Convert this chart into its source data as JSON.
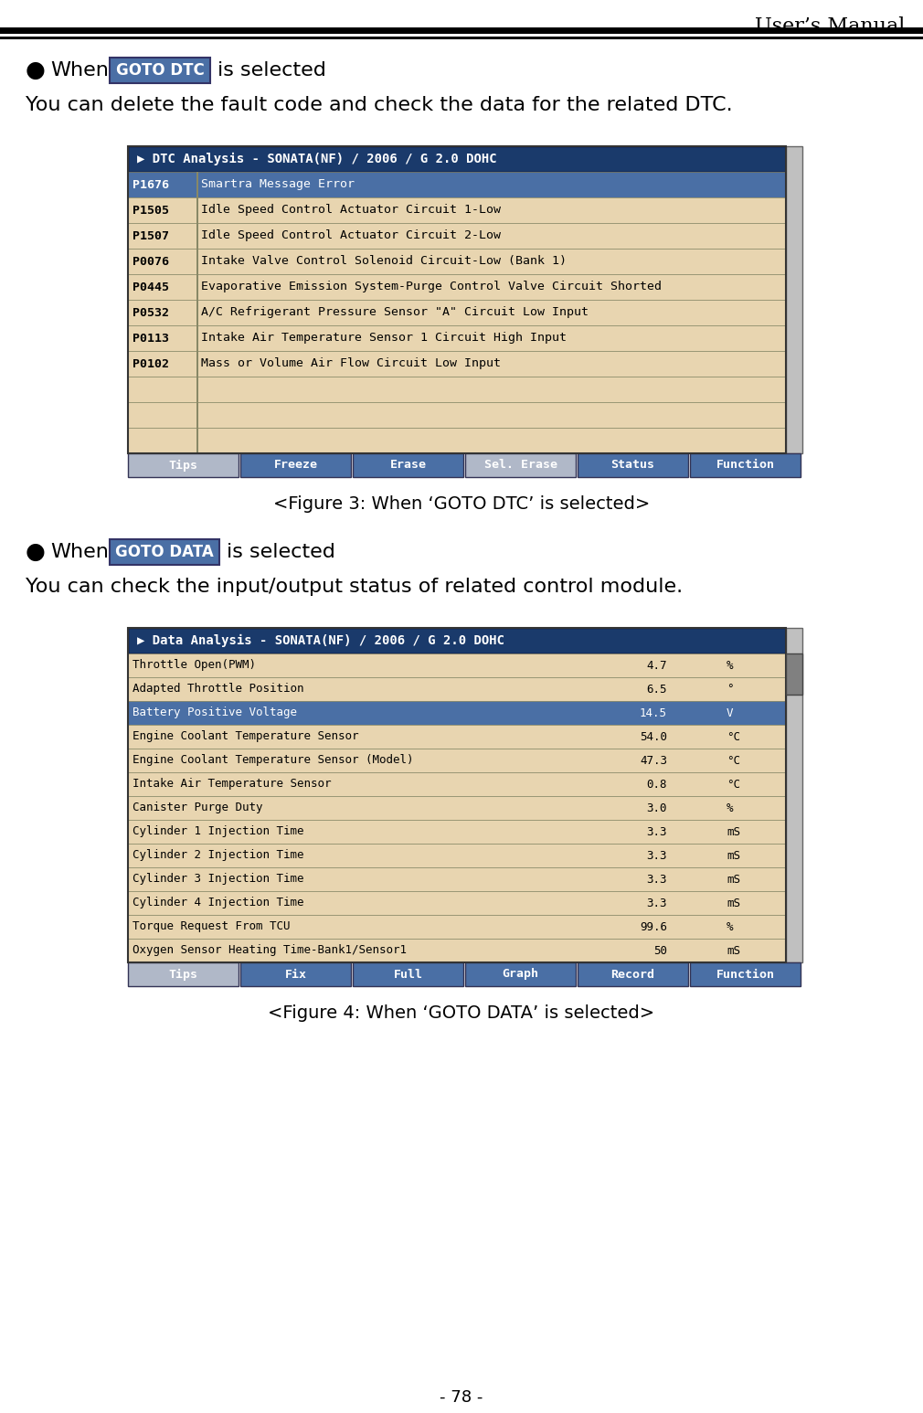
{
  "page_title": "User’s Manual",
  "page_number": "- 78 -",
  "background_color": "#ffffff",
  "section1_bullet": "●",
  "section1_when_text": "When",
  "section1_button_text": "GOTO DTC",
  "section1_button_bg": "#4a6fa5",
  "section1_button_text_color": "#ffffff",
  "section1_is_selected": "is selected",
  "section1_desc": "You can delete the fault code and check the data for the related DTC.",
  "section1_figure_caption": "<Figure 3: When ‘GOTO DTC’ is selected>",
  "dtc_table_header": "▶ DTC Analysis - SONATA(NF) / 2006 / G 2.0 DOHC",
  "dtc_header_bg": "#1a3a6b",
  "dtc_header_text_color": "#ffffff",
  "dtc_row_bg_odd": "#e8d5b0",
  "dtc_row_bg_even": "#e8d5b0",
  "dtc_selected_bg": "#4a6fa5",
  "dtc_selected_text": "#ffffff",
  "dtc_rows": [
    [
      "P1676",
      "Smartra Message Error",
      true
    ],
    [
      "P1505",
      "Idle Speed Control Actuator Circuit 1-Low",
      false
    ],
    [
      "P1507",
      "Idle Speed Control Actuator Circuit 2-Low",
      false
    ],
    [
      "P0076",
      "Intake Valve Control Solenoid Circuit-Low (Bank 1)",
      false
    ],
    [
      "P0445",
      "Evaporative Emission System-Purge Control Valve Circuit Shorted",
      false
    ],
    [
      "P0532",
      "A/C Refrigerant Pressure Sensor \"A\" Circuit Low Input",
      false
    ],
    [
      "P0113",
      "Intake Air Temperature Sensor 1 Circuit High Input",
      false
    ],
    [
      "P0102",
      "Mass or Volume Air Flow Circuit Low Input",
      false
    ],
    [
      "",
      "",
      false
    ],
    [
      "",
      "",
      false
    ],
    [
      "",
      "",
      false
    ]
  ],
  "dtc_buttons": [
    "Tips",
    "Freeze",
    "Erase",
    "Sel. Erase",
    "Status",
    "Function"
  ],
  "dtc_button_active": [
    false,
    true,
    true,
    false,
    true,
    true
  ],
  "dtc_btn_active_bg": "#4a6fa5",
  "dtc_btn_inactive_bg": "#b0b8c8",
  "dtc_btn_text_color": "#ffffff",
  "section2_bullet": "●",
  "section2_when_text": "When",
  "section2_button_text": "GOTO DATA",
  "section2_button_bg": "#4a6fa5",
  "section2_button_text_color": "#ffffff",
  "section2_is_selected": "is selected",
  "section2_desc": "You can check the input/output status of related control module.",
  "section2_figure_caption": "<Figure 4: When ‘GOTO DATA’ is selected>",
  "data_table_header": "▶ Data Analysis - SONATA(NF) / 2006 / G 2.0 DOHC",
  "data_header_bg": "#1a3a6b",
  "data_header_text_color": "#ffffff",
  "data_row_bg": "#e8d5b0",
  "data_selected_bg": "#4a6fa5",
  "data_selected_text": "#ffffff",
  "data_rows": [
    [
      "Throttle Open(PWM)",
      "4.7",
      "%",
      false
    ],
    [
      "Adapted Throttle Position",
      "6.5",
      "°",
      false
    ],
    [
      "Battery Positive Voltage",
      "14.5",
      "V",
      true
    ],
    [
      "Engine Coolant Temperature Sensor",
      "54.0",
      "°C",
      false
    ],
    [
      "Engine Coolant Temperature Sensor (Model)",
      "47.3",
      "°C",
      false
    ],
    [
      "Intake Air Temperature Sensor",
      "0.8",
      "°C",
      false
    ],
    [
      "Canister Purge Duty",
      "3.0",
      "%",
      false
    ],
    [
      "Cylinder 1 Injection Time",
      "3.3",
      "mS",
      false
    ],
    [
      "Cylinder 2 Injection Time",
      "3.3",
      "mS",
      false
    ],
    [
      "Cylinder 3 Injection Time",
      "3.3",
      "mS",
      false
    ],
    [
      "Cylinder 4 Injection Time",
      "3.3",
      "mS",
      false
    ],
    [
      "Torque Request From TCU",
      "99.6",
      "%",
      false
    ],
    [
      "Oxygen Sensor Heating Time-Bank1/Sensor1",
      "50",
      "mS",
      false
    ]
  ],
  "data_buttons": [
    "Tips",
    "Fix",
    "Full",
    "Graph",
    "Record",
    "Function"
  ],
  "data_button_active": [
    false,
    true,
    true,
    true,
    true,
    true
  ],
  "data_btn_active_bg": "#4a6fa5",
  "data_btn_inactive_bg": "#b0b8c8",
  "data_btn_text_color": "#ffffff"
}
